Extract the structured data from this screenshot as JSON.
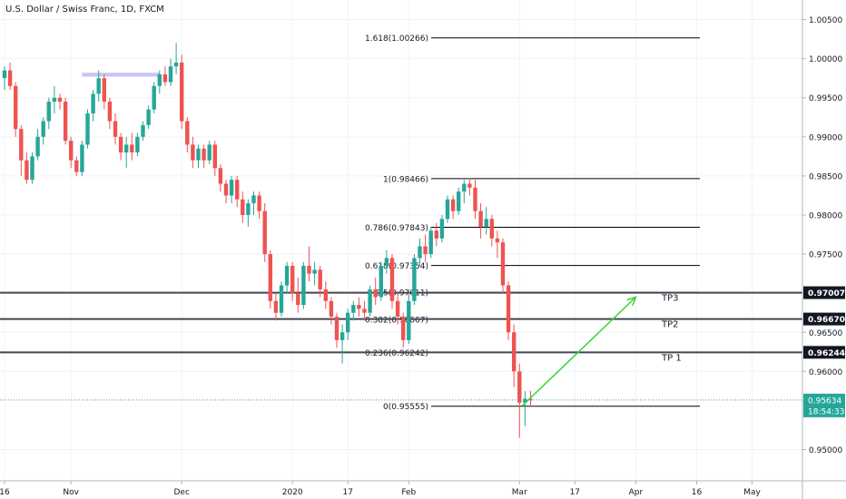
{
  "header": {
    "symbol_title": "U.S. Dollar / Swiss Franc, 1D, FXCM"
  },
  "colors": {
    "up": "#26a69a",
    "down": "#ef5350",
    "fib_line": "#000000",
    "hline": "#434651",
    "arrow": "#33d633",
    "highlight": "#c8c5f5",
    "price_line": "#26a69a",
    "grid": "#f0f3fa"
  },
  "chart_data": {
    "type": "candlestick",
    "symbol": "USDCHF",
    "timeframe": "1D",
    "ylim": [
      0.946,
      1.0075
    ],
    "price_axis_ticks": [
      {
        "value": 1.005,
        "label": "1.00500"
      },
      {
        "value": 1.0,
        "label": "1.00000"
      },
      {
        "value": 0.995,
        "label": "0.99500"
      },
      {
        "value": 0.99,
        "label": "0.99000"
      },
      {
        "value": 0.985,
        "label": "0.98500"
      },
      {
        "value": 0.98,
        "label": "0.98000"
      },
      {
        "value": 0.975,
        "label": "0.97500"
      },
      {
        "value": 0.965,
        "label": "0.96500"
      },
      {
        "value": 0.96,
        "label": "0.96000"
      },
      {
        "value": 0.95,
        "label": "0.95000"
      }
    ],
    "time_axis_ticks": [
      {
        "bar": 0,
        "label": "16"
      },
      {
        "bar": 12,
        "label": "Nov"
      },
      {
        "bar": 32,
        "label": "Dec"
      },
      {
        "bar": 52,
        "label": "2020"
      },
      {
        "bar": 62,
        "label": "17"
      },
      {
        "bar": 73,
        "label": "Feb"
      },
      {
        "bar": 93,
        "label": "Mar"
      },
      {
        "bar": 103,
        "label": "17"
      },
      {
        "bar": 114,
        "label": "Apr"
      },
      {
        "bar": 125,
        "label": "16"
      },
      {
        "bar": 135,
        "label": "May"
      }
    ],
    "candles": [
      {
        "o": 0.9975,
        "h": 0.999,
        "l": 0.996,
        "c": 0.9985
      },
      {
        "o": 0.9985,
        "h": 0.9995,
        "l": 0.996,
        "c": 0.9965
      },
      {
        "o": 0.9965,
        "h": 0.997,
        "l": 0.99,
        "c": 0.991
      },
      {
        "o": 0.991,
        "h": 0.9915,
        "l": 0.985,
        "c": 0.987
      },
      {
        "o": 0.987,
        "h": 0.988,
        "l": 0.984,
        "c": 0.9845
      },
      {
        "o": 0.9845,
        "h": 0.988,
        "l": 0.984,
        "c": 0.9875
      },
      {
        "o": 0.9875,
        "h": 0.991,
        "l": 0.987,
        "c": 0.99
      },
      {
        "o": 0.99,
        "h": 0.9925,
        "l": 0.989,
        "c": 0.992
      },
      {
        "o": 0.992,
        "h": 0.995,
        "l": 0.991,
        "c": 0.9945
      },
      {
        "o": 0.9945,
        "h": 0.9965,
        "l": 0.993,
        "c": 0.995
      },
      {
        "o": 0.995,
        "h": 0.9955,
        "l": 0.9935,
        "c": 0.9945
      },
      {
        "o": 0.9945,
        "h": 0.995,
        "l": 0.989,
        "c": 0.9895
      },
      {
        "o": 0.9895,
        "h": 0.99,
        "l": 0.986,
        "c": 0.987
      },
      {
        "o": 0.987,
        "h": 0.9875,
        "l": 0.985,
        "c": 0.9855
      },
      {
        "o": 0.9855,
        "h": 0.9895,
        "l": 0.985,
        "c": 0.989
      },
      {
        "o": 0.989,
        "h": 0.9935,
        "l": 0.9885,
        "c": 0.993
      },
      {
        "o": 0.993,
        "h": 0.996,
        "l": 0.992,
        "c": 0.9955
      },
      {
        "o": 0.9955,
        "h": 0.9985,
        "l": 0.9945,
        "c": 0.9975
      },
      {
        "o": 0.9975,
        "h": 0.998,
        "l": 0.9935,
        "c": 0.9945
      },
      {
        "o": 0.9945,
        "h": 0.995,
        "l": 0.991,
        "c": 0.992
      },
      {
        "o": 0.992,
        "h": 0.993,
        "l": 0.989,
        "c": 0.99
      },
      {
        "o": 0.99,
        "h": 0.9905,
        "l": 0.987,
        "c": 0.988
      },
      {
        "o": 0.988,
        "h": 0.99,
        "l": 0.986,
        "c": 0.989
      },
      {
        "o": 0.989,
        "h": 0.9905,
        "l": 0.987,
        "c": 0.988
      },
      {
        "o": 0.988,
        "h": 0.9905,
        "l": 0.9875,
        "c": 0.99
      },
      {
        "o": 0.99,
        "h": 0.992,
        "l": 0.9895,
        "c": 0.9915
      },
      {
        "o": 0.9915,
        "h": 0.994,
        "l": 0.991,
        "c": 0.9935
      },
      {
        "o": 0.9935,
        "h": 0.997,
        "l": 0.993,
        "c": 0.9965
      },
      {
        "o": 0.9965,
        "h": 0.9985,
        "l": 0.9955,
        "c": 0.998
      },
      {
        "o": 0.998,
        "h": 0.999,
        "l": 0.9965,
        "c": 0.997
      },
      {
        "o": 0.997,
        "h": 1.0,
        "l": 0.9965,
        "c": 0.999
      },
      {
        "o": 0.999,
        "h": 1.002,
        "l": 0.998,
        "c": 0.9995
      },
      {
        "o": 0.9995,
        "h": 1.0005,
        "l": 0.991,
        "c": 0.992
      },
      {
        "o": 0.992,
        "h": 0.9925,
        "l": 0.988,
        "c": 0.989
      },
      {
        "o": 0.989,
        "h": 0.99,
        "l": 0.986,
        "c": 0.987
      },
      {
        "o": 0.987,
        "h": 0.989,
        "l": 0.986,
        "c": 0.9885
      },
      {
        "o": 0.9885,
        "h": 0.989,
        "l": 0.986,
        "c": 0.987
      },
      {
        "o": 0.987,
        "h": 0.9895,
        "l": 0.9865,
        "c": 0.989
      },
      {
        "o": 0.989,
        "h": 0.9895,
        "l": 0.985,
        "c": 0.986
      },
      {
        "o": 0.986,
        "h": 0.9865,
        "l": 0.983,
        "c": 0.984
      },
      {
        "o": 0.984,
        "h": 0.9845,
        "l": 0.9815,
        "c": 0.9825
      },
      {
        "o": 0.9825,
        "h": 0.985,
        "l": 0.9815,
        "c": 0.9845
      },
      {
        "o": 0.9845,
        "h": 0.985,
        "l": 0.981,
        "c": 0.982
      },
      {
        "o": 0.982,
        "h": 0.983,
        "l": 0.979,
        "c": 0.98
      },
      {
        "o": 0.98,
        "h": 0.982,
        "l": 0.9785,
        "c": 0.9815
      },
      {
        "o": 0.9815,
        "h": 0.983,
        "l": 0.98,
        "c": 0.9825
      },
      {
        "o": 0.9825,
        "h": 0.983,
        "l": 0.9795,
        "c": 0.9805
      },
      {
        "o": 0.9805,
        "h": 0.9815,
        "l": 0.974,
        "c": 0.975
      },
      {
        "o": 0.975,
        "h": 0.9755,
        "l": 0.968,
        "c": 0.969
      },
      {
        "o": 0.969,
        "h": 0.97,
        "l": 0.9665,
        "c": 0.9675
      },
      {
        "o": 0.9675,
        "h": 0.9715,
        "l": 0.967,
        "c": 0.971
      },
      {
        "o": 0.971,
        "h": 0.974,
        "l": 0.97,
        "c": 0.9735
      },
      {
        "o": 0.9735,
        "h": 0.974,
        "l": 0.969,
        "c": 0.97
      },
      {
        "o": 0.97,
        "h": 0.972,
        "l": 0.9675,
        "c": 0.9685
      },
      {
        "o": 0.9685,
        "h": 0.974,
        "l": 0.968,
        "c": 0.9735
      },
      {
        "o": 0.9735,
        "h": 0.976,
        "l": 0.9715,
        "c": 0.9725
      },
      {
        "o": 0.9725,
        "h": 0.974,
        "l": 0.971,
        "c": 0.973
      },
      {
        "o": 0.973,
        "h": 0.9735,
        "l": 0.9695,
        "c": 0.9705
      },
      {
        "o": 0.9705,
        "h": 0.9715,
        "l": 0.968,
        "c": 0.969
      },
      {
        "o": 0.969,
        "h": 0.9695,
        "l": 0.966,
        "c": 0.967
      },
      {
        "o": 0.967,
        "h": 0.9675,
        "l": 0.963,
        "c": 0.964
      },
      {
        "o": 0.964,
        "h": 0.966,
        "l": 0.961,
        "c": 0.965
      },
      {
        "o": 0.965,
        "h": 0.968,
        "l": 0.964,
        "c": 0.9675
      },
      {
        "o": 0.9675,
        "h": 0.969,
        "l": 0.9665,
        "c": 0.9685
      },
      {
        "o": 0.9685,
        "h": 0.9695,
        "l": 0.967,
        "c": 0.968
      },
      {
        "o": 0.968,
        "h": 0.969,
        "l": 0.9665,
        "c": 0.9675
      },
      {
        "o": 0.9675,
        "h": 0.971,
        "l": 0.967,
        "c": 0.9705
      },
      {
        "o": 0.9705,
        "h": 0.972,
        "l": 0.9685,
        "c": 0.9695
      },
      {
        "o": 0.9695,
        "h": 0.974,
        "l": 0.969,
        "c": 0.9735
      },
      {
        "o": 0.9735,
        "h": 0.9755,
        "l": 0.9725,
        "c": 0.9745
      },
      {
        "o": 0.9745,
        "h": 0.975,
        "l": 0.968,
        "c": 0.969
      },
      {
        "o": 0.969,
        "h": 0.97,
        "l": 0.966,
        "c": 0.967
      },
      {
        "o": 0.967,
        "h": 0.9675,
        "l": 0.963,
        "c": 0.964
      },
      {
        "o": 0.964,
        "h": 0.97,
        "l": 0.9635,
        "c": 0.969
      },
      {
        "o": 0.969,
        "h": 0.975,
        "l": 0.9685,
        "c": 0.9745
      },
      {
        "o": 0.9745,
        "h": 0.977,
        "l": 0.9735,
        "c": 0.976
      },
      {
        "o": 0.976,
        "h": 0.9775,
        "l": 0.974,
        "c": 0.975
      },
      {
        "o": 0.975,
        "h": 0.9785,
        "l": 0.9745,
        "c": 0.978
      },
      {
        "o": 0.978,
        "h": 0.979,
        "l": 0.976,
        "c": 0.977
      },
      {
        "o": 0.977,
        "h": 0.98,
        "l": 0.9765,
        "c": 0.9795
      },
      {
        "o": 0.9795,
        "h": 0.9825,
        "l": 0.979,
        "c": 0.982
      },
      {
        "o": 0.982,
        "h": 0.9825,
        "l": 0.9795,
        "c": 0.9805
      },
      {
        "o": 0.9805,
        "h": 0.9835,
        "l": 0.98,
        "c": 0.983
      },
      {
        "o": 0.983,
        "h": 0.9845,
        "l": 0.9815,
        "c": 0.984
      },
      {
        "o": 0.984,
        "h": 0.9847,
        "l": 0.9825,
        "c": 0.9835
      },
      {
        "o": 0.9835,
        "h": 0.9845,
        "l": 0.9795,
        "c": 0.9805
      },
      {
        "o": 0.9805,
        "h": 0.9815,
        "l": 0.977,
        "c": 0.9785
      },
      {
        "o": 0.9785,
        "h": 0.981,
        "l": 0.9775,
        "c": 0.9795
      },
      {
        "o": 0.9795,
        "h": 0.98,
        "l": 0.976,
        "c": 0.977
      },
      {
        "o": 0.977,
        "h": 0.978,
        "l": 0.9745,
        "c": 0.9765
      },
      {
        "o": 0.9765,
        "h": 0.977,
        "l": 0.97,
        "c": 0.971
      },
      {
        "o": 0.971,
        "h": 0.9715,
        "l": 0.964,
        "c": 0.965
      },
      {
        "o": 0.965,
        "h": 0.966,
        "l": 0.958,
        "c": 0.96
      },
      {
        "o": 0.96,
        "h": 0.961,
        "l": 0.9515,
        "c": 0.956
      },
      {
        "o": 0.956,
        "h": 0.9575,
        "l": 0.953,
        "c": 0.9565
      },
      {
        "o": 0.9565,
        "h": 0.9575,
        "l": 0.9555,
        "c": 0.9563
      }
    ],
    "fib_levels": [
      {
        "label": "1.618(1.00266)",
        "value": 1.00266
      },
      {
        "label": "1(0.98466)",
        "value": 0.98466
      },
      {
        "label": "0.786(0.97843)",
        "value": 0.97843
      },
      {
        "label": "0.618(0.97354)",
        "value": 0.97354
      },
      {
        "label": "0.5(0.97011)",
        "value": 0.97011
      },
      {
        "label": "0.382(0.96667)",
        "value": 0.96667
      },
      {
        "label": "0.236(0.96242)",
        "value": 0.96242
      },
      {
        "label": "0(0.95555)",
        "value": 0.95555
      }
    ],
    "horizontal_lines": [
      {
        "value": 0.97007,
        "label": "TP3",
        "axis_label": "0.97007"
      },
      {
        "value": 0.9667,
        "label": "TP2",
        "axis_label": "0.96670"
      },
      {
        "value": 0.96244,
        "label": "TP 1",
        "axis_label": "0.96244"
      }
    ],
    "highlight_zone": {
      "bar_start": 14,
      "bar_end": 28,
      "value_top": 0.9982,
      "value_bottom": 0.9977
    },
    "arrow": {
      "from_bar": 93.5,
      "from_value": 0.9556,
      "to_bar": 114,
      "to_value": 0.9695
    },
    "current_price": {
      "value": 0.95634,
      "label": "0.95634",
      "countdown": "18:54:33"
    }
  }
}
